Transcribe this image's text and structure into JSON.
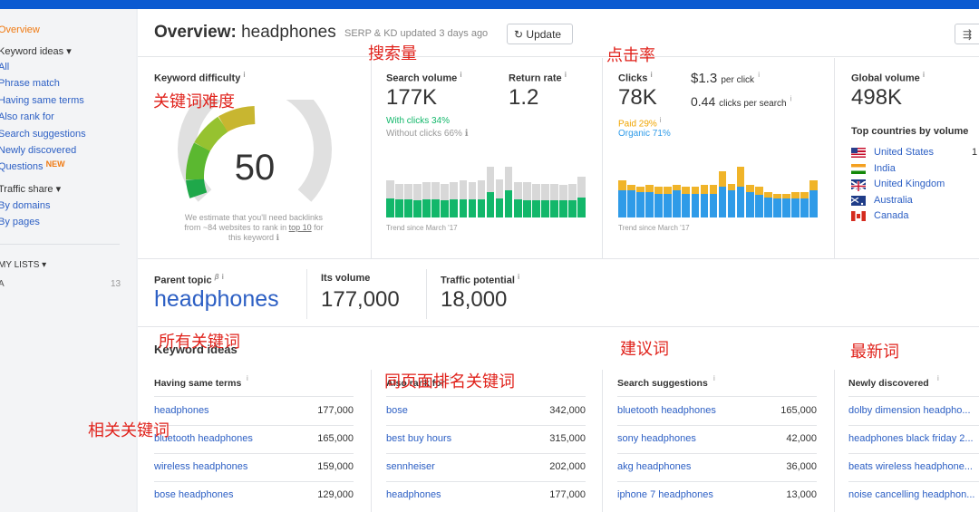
{
  "sidebar": {
    "overview": "Overview",
    "keyword_ideas": "Keyword ideas ▾",
    "items": [
      "All",
      "Phrase match",
      "Having same terms",
      "Also rank for",
      "Search suggestions",
      "Newly discovered",
      "Questions"
    ],
    "new_badge": "NEW",
    "traffic_share": "Traffic share ▾",
    "traffic_items": [
      "By domains",
      "By pages"
    ],
    "my_lists": "MY LISTS ▾",
    "list_name": "A",
    "list_count": "13"
  },
  "header": {
    "title_prefix": "Overview:",
    "keyword": "headphones",
    "updated": "SERP & KD updated 3 days ago",
    "update_button": "Update"
  },
  "kd": {
    "label": "Keyword difficulty",
    "value": "50",
    "value_fraction": 0.5,
    "note_line1": "We estimate that you'll need backlinks",
    "note_line2_a": "from ~84 websites to rank in ",
    "note_link": "top 10",
    "note_line2_b": " for",
    "note_line3": "this keyword"
  },
  "volume": {
    "label": "Search volume",
    "value": "177K",
    "return_label": "Return rate",
    "return_value": "1.2",
    "with_clicks": "With clicks 34%",
    "without_clicks": "Without clicks 66%",
    "trend": "Trend since March '17",
    "bars": [
      {
        "total": 0.55,
        "part": 0.28
      },
      {
        "total": 0.5,
        "part": 0.27
      },
      {
        "total": 0.5,
        "part": 0.27
      },
      {
        "total": 0.5,
        "part": 0.25
      },
      {
        "total": 0.52,
        "part": 0.27
      },
      {
        "total": 0.52,
        "part": 0.27
      },
      {
        "total": 0.5,
        "part": 0.25
      },
      {
        "total": 0.52,
        "part": 0.27
      },
      {
        "total": 0.55,
        "part": 0.27
      },
      {
        "total": 0.52,
        "part": 0.27
      },
      {
        "total": 0.55,
        "part": 0.27
      },
      {
        "total": 0.75,
        "part": 0.38
      },
      {
        "total": 0.56,
        "part": 0.28
      },
      {
        "total": 0.75,
        "part": 0.4
      },
      {
        "total": 0.52,
        "part": 0.27
      },
      {
        "total": 0.52,
        "part": 0.25
      },
      {
        "total": 0.5,
        "part": 0.25
      },
      {
        "total": 0.5,
        "part": 0.25
      },
      {
        "total": 0.5,
        "part": 0.25
      },
      {
        "total": 0.48,
        "part": 0.25
      },
      {
        "total": 0.5,
        "part": 0.25
      },
      {
        "total": 0.6,
        "part": 0.3
      }
    ]
  },
  "clicks": {
    "label": "Clicks",
    "value": "78K",
    "cpc": "$1.3",
    "cpc_unit": "per click",
    "cps": "0.44",
    "cps_unit": "clicks per search",
    "paid": "Paid 29%",
    "organic": "Organic 71%",
    "trend": "Trend since March '17",
    "bars": [
      {
        "total": 0.55,
        "part": 0.4
      },
      {
        "total": 0.48,
        "part": 0.4
      },
      {
        "total": 0.45,
        "part": 0.37
      },
      {
        "total": 0.48,
        "part": 0.37
      },
      {
        "total": 0.45,
        "part": 0.35
      },
      {
        "total": 0.45,
        "part": 0.35
      },
      {
        "total": 0.48,
        "part": 0.4
      },
      {
        "total": 0.45,
        "part": 0.35
      },
      {
        "total": 0.45,
        "part": 0.35
      },
      {
        "total": 0.48,
        "part": 0.35
      },
      {
        "total": 0.48,
        "part": 0.35
      },
      {
        "total": 0.68,
        "part": 0.45
      },
      {
        "total": 0.5,
        "part": 0.4
      },
      {
        "total": 0.75,
        "part": 0.45
      },
      {
        "total": 0.48,
        "part": 0.38
      },
      {
        "total": 0.45,
        "part": 0.33
      },
      {
        "total": 0.38,
        "part": 0.3
      },
      {
        "total": 0.35,
        "part": 0.28
      },
      {
        "total": 0.35,
        "part": 0.28
      },
      {
        "total": 0.38,
        "part": 0.28
      },
      {
        "total": 0.37,
        "part": 0.28
      },
      {
        "total": 0.55,
        "part": 0.4
      }
    ]
  },
  "global": {
    "label": "Global volume",
    "value": "498K",
    "top_label": "Top countries by volume",
    "countries": [
      "United States",
      "India",
      "United Kingdom",
      "Australia",
      "Canada"
    ],
    "first_value_partial": "1"
  },
  "parent": {
    "label": "Parent topic",
    "beta": "β",
    "value": "headphones",
    "vol_label": "Its volume",
    "vol_value": "177,000",
    "tp_label": "Traffic potential",
    "tp_value": "18,000"
  },
  "ideas": {
    "title": "Keyword ideas",
    "col1": {
      "header": "Having same terms",
      "rows": [
        [
          "headphones",
          "177,000"
        ],
        [
          "bluetooth headphones",
          "165,000"
        ],
        [
          "wireless headphones",
          "159,000"
        ],
        [
          "bose headphones",
          "129,000"
        ]
      ]
    },
    "col2": {
      "header": "Also rank for",
      "rows": [
        [
          "bose",
          "342,000"
        ],
        [
          "best buy hours",
          "315,000"
        ],
        [
          "sennheiser",
          "202,000"
        ],
        [
          "headphones",
          "177,000"
        ]
      ]
    },
    "col3": {
      "header": "Search suggestions",
      "rows": [
        [
          "bluetooth headphones",
          "165,000"
        ],
        [
          "sony headphones",
          "42,000"
        ],
        [
          "akg headphones",
          "36,000"
        ],
        [
          "iphone 7 headphones",
          "13,000"
        ]
      ]
    },
    "col4": {
      "header": "Newly discovered",
      "rows": [
        [
          "dolby dimension headpho..."
        ],
        [
          "headphones black friday 2..."
        ],
        [
          "beats wireless headphone..."
        ],
        [
          "noise cancelling headphon..."
        ]
      ]
    }
  },
  "annotations": {
    "kd": "关键词难度",
    "volume": "搜索量",
    "ctr": "点击率",
    "all": "所有关键词",
    "related": "相关关键词",
    "also_rank": "同页面排名关键词",
    "suggestions": "建议词",
    "newest": "最新词"
  },
  "colors": {
    "accent": "#0b5ad1",
    "link": "#2c5fc4",
    "green": "#12b76a",
    "gray_bar": "#d8d8d8",
    "orange": "#f0b429",
    "blue": "#2f9be8",
    "annotation": "#e0231c"
  }
}
